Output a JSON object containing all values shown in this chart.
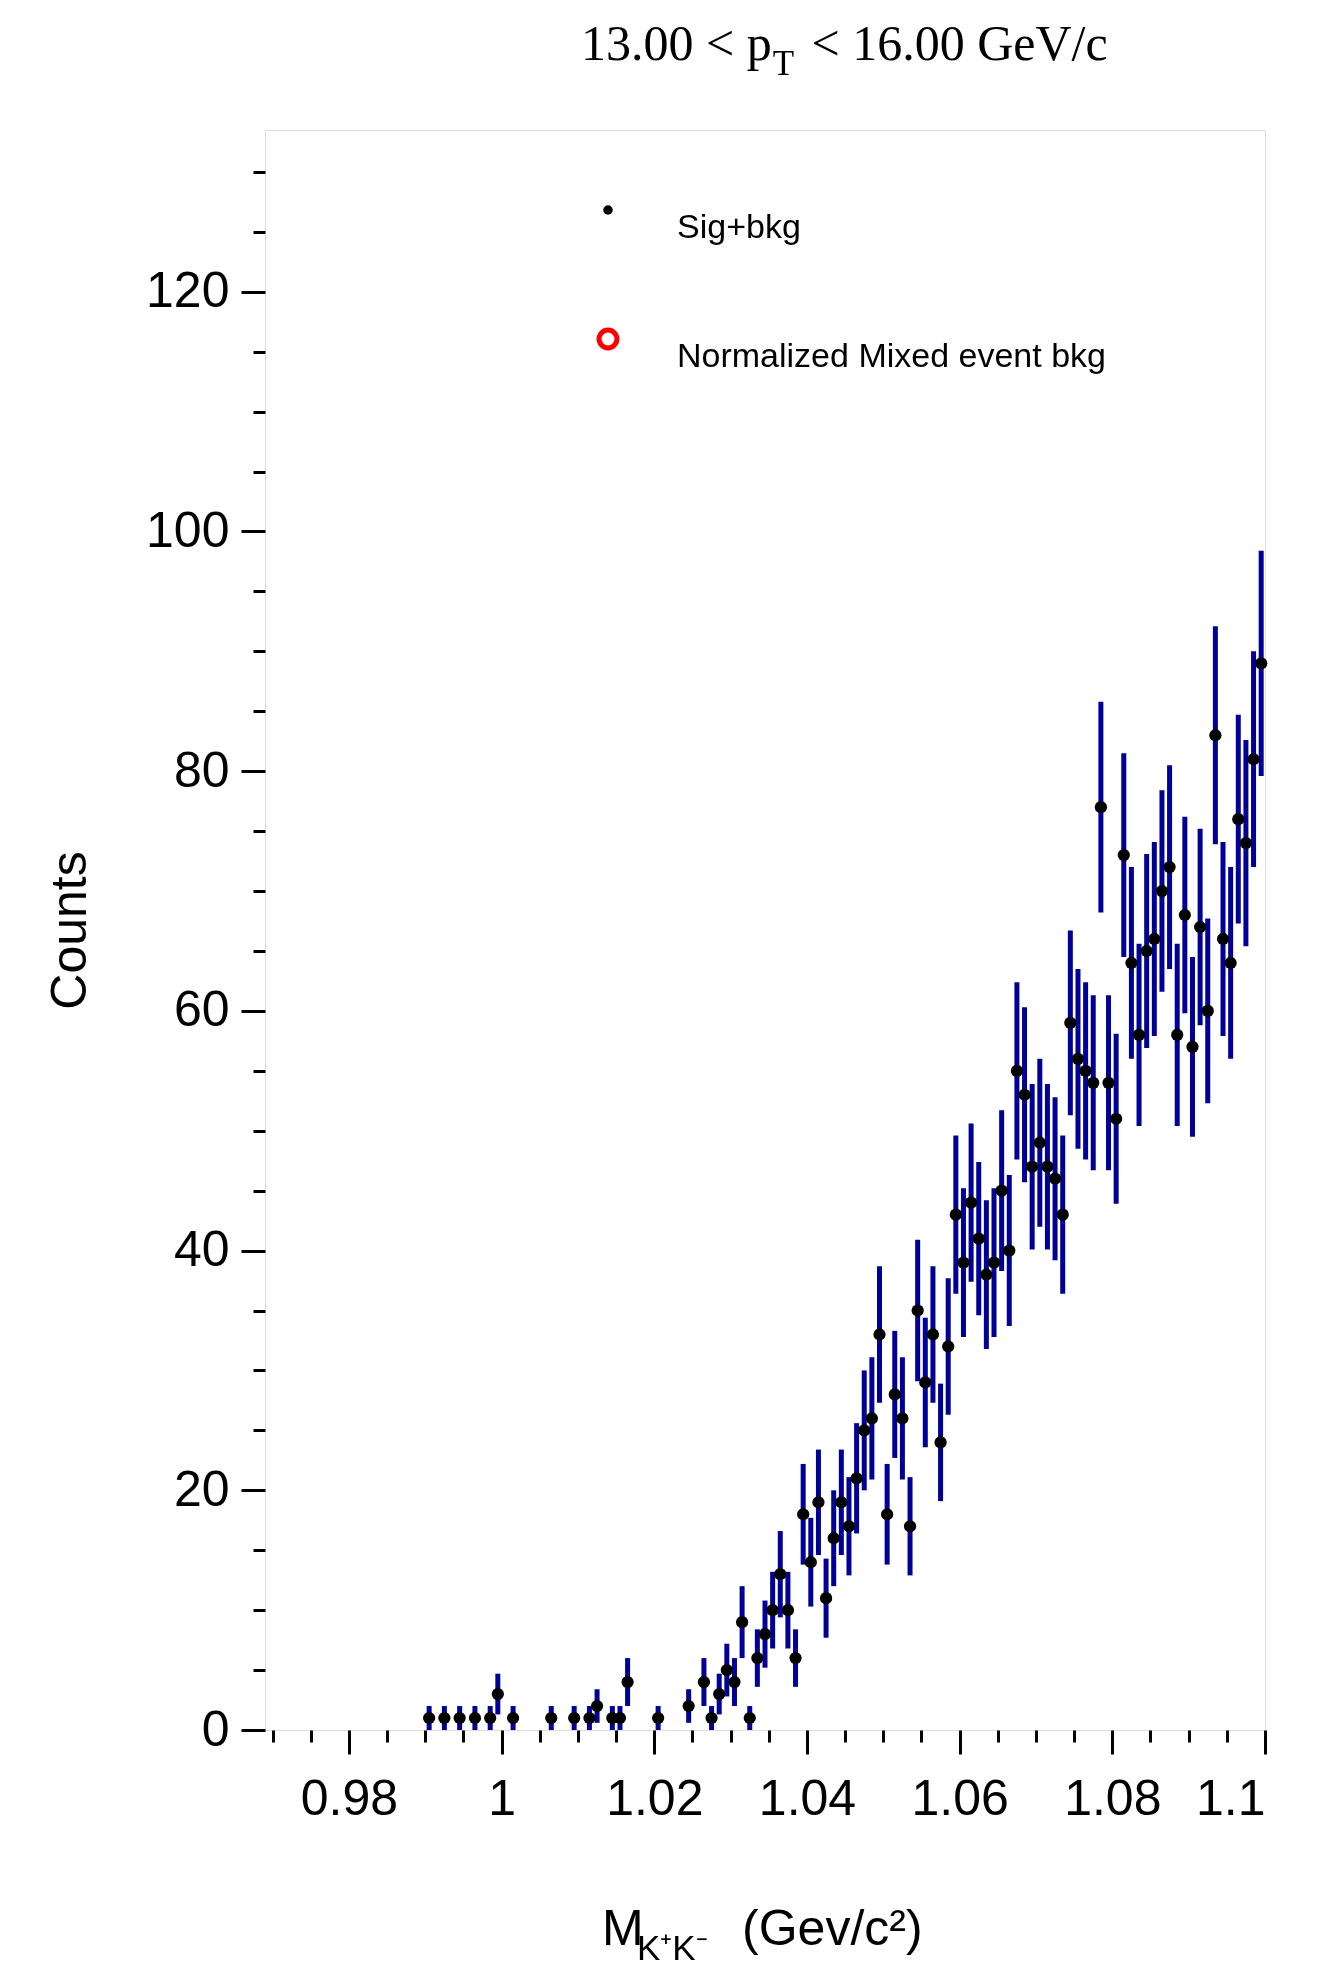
{
  "chart_data": {
    "type": "scatter",
    "title": "13.00 < p$_{T}$ < 16.00 GeV/c",
    "xlabel": "M$_{K⁺K⁻}$ (Gev/c²)",
    "ylabel": "Counts",
    "x": [
      0.9905,
      0.9925,
      0.9945,
      0.9965,
      0.9985,
      0.9995,
      1.0015,
      1.0065,
      1.0095,
      1.0115,
      1.0125,
      1.0145,
      1.0155,
      1.0165,
      1.0205,
      1.0245,
      1.0265,
      1.0275,
      1.0285,
      1.0295,
      1.0305,
      1.0315,
      1.0325,
      1.0335,
      1.0345,
      1.0355,
      1.0365,
      1.0375,
      1.0385,
      1.0395,
      1.0405,
      1.0415,
      1.0425,
      1.0435,
      1.0445,
      1.0455,
      1.0465,
      1.0475,
      1.0485,
      1.0495,
      1.0505,
      1.0515,
      1.0525,
      1.0535,
      1.0545,
      1.0555,
      1.0565,
      1.0575,
      1.0585,
      1.0595,
      1.0605,
      1.0615,
      1.0625,
      1.0635,
      1.0645,
      1.0655,
      1.0665,
      1.0675,
      1.0685,
      1.0695,
      1.0705,
      1.0715,
      1.0725,
      1.0735,
      1.0745,
      1.0755,
      1.0765,
      1.0775,
      1.0785,
      1.0795,
      1.0805,
      1.0815,
      1.0825,
      1.0835,
      1.0845,
      1.0855,
      1.0865,
      1.0875,
      1.0885,
      1.0895,
      1.0905,
      1.0915,
      1.0925,
      1.0935,
      1.0945,
      1.0955,
      1.0965,
      1.0975,
      1.0985,
      1.0995
    ],
    "series": [
      {
        "name": "Sig+bkg",
        "color": "#000000",
        "values": [
          1,
          1,
          1,
          1,
          1,
          3,
          1,
          1,
          1,
          1,
          2,
          1,
          1,
          4,
          1,
          2,
          4,
          1,
          3,
          5,
          4,
          9,
          1,
          6,
          8,
          10,
          13,
          10,
          6,
          18,
          14,
          19,
          11,
          16,
          19,
          17,
          21,
          25,
          26,
          33,
          18,
          28,
          26,
          17,
          35,
          29,
          33,
          24,
          32,
          43,
          39,
          44,
          41,
          38,
          39,
          45,
          40,
          55,
          53,
          47,
          49,
          47,
          46,
          43,
          59,
          56,
          55,
          54,
          77,
          54,
          51,
          73,
          64,
          58,
          65,
          66,
          70,
          72,
          58,
          68,
          57,
          67,
          60,
          83,
          66,
          64,
          76,
          74,
          81,
          89
        ],
        "errors": [
          1,
          1,
          1,
          1,
          1,
          1.7,
          1,
          1,
          1,
          1,
          1.4,
          1,
          1,
          2,
          1,
          1.4,
          2,
          1,
          1.7,
          2.2,
          2,
          3,
          1,
          2.4,
          2.8,
          3.2,
          3.6,
          3.2,
          2.4,
          4.2,
          3.7,
          4.4,
          3.3,
          4,
          4.4,
          4.1,
          4.6,
          5,
          5.1,
          5.7,
          4.2,
          5.3,
          5.1,
          4.1,
          5.9,
          5.4,
          5.7,
          4.9,
          5.7,
          6.6,
          6.2,
          6.6,
          6.4,
          6.2,
          6.2,
          6.7,
          6.3,
          7.4,
          7.3,
          6.9,
          7,
          6.9,
          6.8,
          6.6,
          7.7,
          7.5,
          7.4,
          7.3,
          8.8,
          7.3,
          7.1,
          8.5,
          8,
          7.6,
          8.1,
          8.1,
          8.4,
          8.5,
          7.6,
          8.2,
          7.5,
          8.2,
          7.7,
          9.1,
          8.1,
          8,
          8.7,
          8.6,
          9,
          9.4
        ]
      },
      {
        "name": "Normalized Mixed event bkg",
        "color": "#ff0000",
        "values": [
          null,
          null,
          null,
          null,
          null,
          null,
          null,
          null,
          null,
          null,
          null,
          null,
          null,
          null,
          null,
          null,
          null,
          null,
          null,
          null,
          null,
          null,
          null,
          null,
          null,
          null,
          null,
          null,
          null,
          null,
          null,
          null,
          null,
          null,
          null,
          null,
          null,
          null,
          null,
          null,
          null,
          null,
          null,
          null,
          null,
          null,
          null,
          null,
          null,
          null,
          null,
          null,
          null,
          null,
          null,
          null,
          null,
          null,
          null,
          null,
          null,
          null,
          null,
          null,
          null,
          null,
          null,
          null,
          null,
          null,
          null,
          null,
          null,
          null,
          null,
          null,
          null,
          null,
          null,
          null,
          null,
          null,
          null,
          null,
          null,
          null,
          null,
          null,
          null,
          null
        ]
      }
    ],
    "xlim": [
      0.969,
      1.1
    ],
    "xticks": [
      {
        "value": 0.97,
        "label": null
      },
      {
        "value": 0.975,
        "label": null
      },
      0.98,
      {
        "value": 0.985,
        "label": null
      },
      {
        "value": 0.99,
        "label": null
      },
      {
        "value": 0.995,
        "label": null
      },
      1,
      {
        "value": 1.005,
        "label": null
      },
      {
        "value": 1.01,
        "label": null
      },
      {
        "value": 1.015,
        "label": null
      },
      1.02,
      {
        "value": 1.025,
        "label": null
      },
      {
        "value": 1.03,
        "label": null
      },
      {
        "value": 1.035,
        "label": null
      },
      1.04,
      {
        "value": 1.045,
        "label": null
      },
      {
        "value": 1.05,
        "label": null
      },
      {
        "value": 1.055,
        "label": null
      },
      1.06,
      {
        "value": 1.065,
        "label": null
      },
      {
        "value": 1.07,
        "label": null
      },
      {
        "value": 1.075,
        "label": null
      },
      1.08,
      {
        "value": 1.085,
        "label": null
      },
      {
        "value": 1.09,
        "label": null
      },
      {
        "value": 1.095,
        "label": null
      },
      1.1
    ],
    "ylim": [
      0,
      133.5
    ],
    "yticks": [
      0,
      {
        "value": 5,
        "label": null
      },
      {
        "value": 10,
        "label": null
      },
      {
        "value": 15,
        "label": null
      },
      20,
      {
        "value": 25,
        "label": null
      },
      {
        "value": 30,
        "label": null
      },
      {
        "value": 35,
        "label": null
      },
      40,
      {
        "value": 45,
        "label": null
      },
      {
        "value": 50,
        "label": null
      },
      {
        "value": 55,
        "label": null
      },
      60,
      {
        "value": 65,
        "label": null
      },
      {
        "value": 70,
        "label": null
      },
      {
        "value": 75,
        "label": null
      },
      80,
      {
        "value": 85,
        "label": null
      },
      {
        "value": 90,
        "label": null
      },
      {
        "value": 95,
        "label": null
      },
      100,
      {
        "value": 105,
        "label": null
      },
      {
        "value": 110,
        "label": null
      },
      {
        "value": 115,
        "label": null
      },
      120,
      {
        "value": 125,
        "label": null
      },
      {
        "value": 130,
        "label": null
      }
    ],
    "marker": "circle",
    "grid": false,
    "legend": "top"
  }
}
